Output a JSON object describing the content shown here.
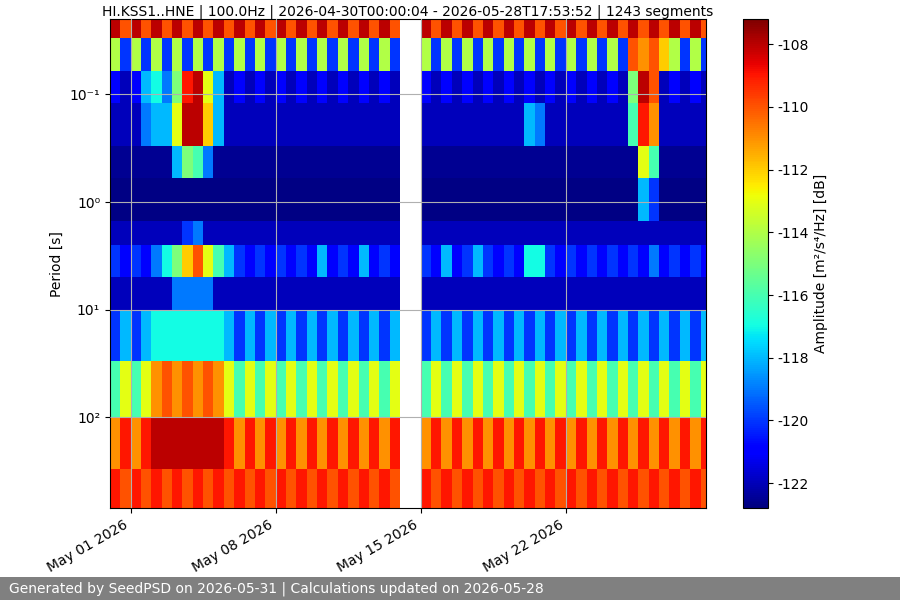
{
  "chart_data": {
    "type": "heatmap",
    "title": "HI.KSS1..HNE | 100.0Hz | 2026-04-30T00:00:04 - 2026-05-28T17:53:52 | 1243 segments",
    "ylabel": "Period [s]",
    "footer": "Generated by SeedPSD on 2026-05-31 | Calculations updated on 2026-05-28",
    "color": "jet",
    "log": "y",
    "grid": true,
    "xlim": [
      "2026-04-30T00:00:04",
      "2026-05-28T17:53:52"
    ],
    "xticks": [
      {
        "value": "2026-05-01",
        "label": "May 01 2026"
      },
      {
        "value": "2026-05-08",
        "label": "May 08 2026"
      },
      {
        "value": "2026-05-15",
        "label": "May 15 2026"
      },
      {
        "value": "2026-05-22",
        "label": "May 22 2026"
      }
    ],
    "ylim": [
      700,
      0.02
    ],
    "yticks": [
      {
        "value": 0.1,
        "label": "10⁻¹"
      },
      {
        "value": 1,
        "label": "10⁰"
      },
      {
        "value": 10,
        "label": "10¹"
      },
      {
        "value": 100,
        "label": "10²"
      }
    ],
    "colorbar": {
      "label": "Amplitude [m²/s⁴/Hz] [dB]",
      "range": [
        -122.8,
        -107.2
      ],
      "ticks": [
        -122,
        -120,
        -118,
        -116,
        -114,
        -112,
        -110,
        -108
      ]
    },
    "time_edges": [
      "2026-04-30T00:00",
      "2026-04-30T12:00",
      "2026-05-01T00:00",
      "2026-05-01T12:00",
      "2026-05-02T00:00",
      "2026-05-02T12:00",
      "2026-05-03T00:00",
      "2026-05-03T12:00",
      "2026-05-04T00:00",
      "2026-05-04T12:00",
      "2026-05-05T00:00",
      "2026-05-05T12:00",
      "2026-05-06T00:00",
      "2026-05-06T12:00",
      "2026-05-07T00:00",
      "2026-05-07T12:00",
      "2026-05-08T00:00",
      "2026-05-08T12:00",
      "2026-05-09T00:00",
      "2026-05-09T12:00",
      "2026-05-10T00:00",
      "2026-05-10T12:00",
      "2026-05-11T00:00",
      "2026-05-11T12:00",
      "2026-05-12T00:00",
      "2026-05-12T12:00",
      "2026-05-13T00:00",
      "2026-05-13T12:00",
      "2026-05-14T00:00",
      "2026-05-14T12:00",
      "2026-05-15T00:00",
      "2026-05-15T12:00",
      "2026-05-16T00:00",
      "2026-05-16T12:00",
      "2026-05-17T00:00",
      "2026-05-17T12:00",
      "2026-05-18T00:00",
      "2026-05-18T12:00",
      "2026-05-19T00:00",
      "2026-05-19T12:00",
      "2026-05-20T00:00",
      "2026-05-20T12:00",
      "2026-05-21T00:00",
      "2026-05-21T12:00",
      "2026-05-22T00:00",
      "2026-05-22T12:00",
      "2026-05-23T00:00",
      "2026-05-23T12:00",
      "2026-05-24T00:00",
      "2026-05-24T12:00",
      "2026-05-25T00:00",
      "2026-05-25T12:00",
      "2026-05-26T00:00",
      "2026-05-26T12:00",
      "2026-05-27T00:00",
      "2026-05-27T12:00",
      "2026-05-28T00:00",
      "2026-05-28T12:00",
      "2026-05-29T00:00"
    ],
    "period_edges": [
      0.02,
      0.03,
      0.06,
      0.12,
      0.3,
      0.6,
      1.5,
      2.5,
      5,
      10,
      30,
      100,
      300,
      700
    ],
    "cells": [
      [
        -108,
        -110,
        -108,
        -110,
        -108,
        -110,
        -108,
        -110,
        -108,
        -110,
        -108,
        -110,
        -108,
        -110,
        -108,
        -110,
        -108,
        -110,
        -108,
        -110,
        -108,
        -110,
        -108,
        -110,
        -108,
        -110,
        -108,
        -110,
        null,
        null,
        -108,
        -110,
        -108,
        -110,
        -108,
        -110,
        -108,
        -110,
        -108,
        -110,
        -108,
        -110,
        -108,
        -110,
        -108,
        -110,
        -108,
        -110,
        -108,
        -110,
        -108,
        -110,
        -108,
        -110,
        -108,
        -110,
        -108,
        -110
      ],
      [
        -114,
        -120,
        -114,
        -120,
        -114,
        -120,
        -114,
        -120,
        -114,
        -120,
        -114,
        -120,
        -114,
        -120,
        -114,
        -120,
        -114,
        -120,
        -114,
        -120,
        -114,
        -120,
        -114,
        -120,
        -114,
        -120,
        -114,
        -120,
        null,
        null,
        -114,
        -120,
        -114,
        -120,
        -114,
        -120,
        -114,
        -120,
        -114,
        -120,
        -114,
        -120,
        -114,
        -120,
        -114,
        -120,
        -114,
        -120,
        -114,
        -120,
        -110,
        -111,
        -110,
        -112,
        -114,
        -120,
        -114,
        -120
      ],
      [
        -121,
        -122,
        -121,
        -118,
        -117,
        -119,
        -115,
        -109,
        -108,
        -113,
        -118,
        -122,
        -121,
        -122,
        -121,
        -122,
        -121,
        -122,
        -121,
        -122,
        -121,
        -122,
        -121,
        -122,
        -121,
        -122,
        -121,
        -122,
        null,
        null,
        -121,
        -122,
        -121,
        -122,
        -121,
        -122,
        -121,
        -122,
        -121,
        -122,
        -121,
        -122,
        -121,
        -122,
        -121,
        -122,
        -121,
        -122,
        -121,
        -122,
        -115,
        -108,
        -110,
        -122,
        -121,
        -122,
        -121,
        -122
      ],
      [
        -122,
        -122,
        -122,
        -119,
        -118,
        -118,
        -113,
        -108,
        -108,
        -112,
        -118,
        -122,
        -122,
        -122,
        -122,
        -122,
        -122,
        -122,
        -122,
        -122,
        -122,
        -122,
        -122,
        -122,
        -122,
        -122,
        -122,
        -122,
        null,
        null,
        -122,
        -122,
        -122,
        -122,
        -122,
        -122,
        -122,
        -122,
        -122,
        -122,
        -118,
        -119,
        -122,
        -122,
        -122,
        -122,
        -122,
        -122,
        -122,
        -122,
        -116,
        -109,
        -111,
        -122,
        -122,
        -122,
        -122,
        -122
      ],
      [
        -122.5,
        -122.5,
        -122.5,
        -122.5,
        -122.5,
        -122.5,
        -118,
        -115,
        -116,
        -119,
        -122.5,
        -122.5,
        -122.5,
        -122.5,
        -122.5,
        -122.5,
        -122.5,
        -122.5,
        -122.5,
        -122.5,
        -122.5,
        -122.5,
        -122.5,
        -122.5,
        -122.5,
        -122.5,
        -122.5,
        -122.5,
        null,
        null,
        -122.5,
        -122.5,
        -122.5,
        -122.5,
        -122.5,
        -122.5,
        -122.5,
        -122.5,
        -122.5,
        -122.5,
        -122.5,
        -122.5,
        -122.5,
        -122.5,
        -122.5,
        -122.5,
        -122.5,
        -122.5,
        -122.5,
        -122.5,
        -122.5,
        -113,
        -116,
        -122.5,
        -122.5,
        -122.5,
        -122.5,
        -122.5
      ],
      [
        -122.7,
        -122.7,
        -122.7,
        -122.7,
        -122.7,
        -122.7,
        -122.7,
        -122.7,
        -122.7,
        -122.7,
        -122.7,
        -122.7,
        -122.7,
        -122.7,
        -122.7,
        -122.7,
        -122.7,
        -122.7,
        -122.7,
        -122.7,
        -122.7,
        -122.7,
        -122.7,
        -122.7,
        -122.7,
        -122.7,
        -122.7,
        -122.7,
        null,
        null,
        -122.7,
        -122.7,
        -122.7,
        -122.7,
        -122.7,
        -122.7,
        -122.7,
        -122.7,
        -122.7,
        -122.7,
        -122.7,
        -122.7,
        -122.7,
        -122.7,
        -122.7,
        -122.7,
        -122.7,
        -122.7,
        -122.7,
        -122.7,
        -122.7,
        -118,
        -120,
        -122.7,
        -122.7,
        -122.7,
        -122.7,
        -122.7
      ],
      [
        -122,
        -122,
        -122,
        -122,
        -122,
        -122,
        -122,
        -120,
        -119,
        -122,
        -122,
        -122,
        -122,
        -122,
        -122,
        -122,
        -122,
        -122,
        -122,
        -122,
        -122,
        -122,
        -122,
        -122,
        -122,
        -122,
        -122,
        -122,
        null,
        null,
        -122,
        -122,
        -122,
        -122,
        -122,
        -122,
        -122,
        -122,
        -122,
        -122,
        -122,
        -122,
        -122,
        -122,
        -122,
        -122,
        -122,
        -122,
        -122,
        -122,
        -122,
        -122,
        -122,
        -122,
        -122,
        -122,
        -122,
        -122
      ],
      [
        -120,
        -121,
        -120,
        -121,
        -119,
        -117,
        -115,
        -112,
        -110,
        -113,
        -116,
        -118,
        -120,
        -121,
        -120,
        -121,
        -120,
        -121,
        -120,
        -121,
        -118,
        -121,
        -120,
        -121,
        -118,
        -121,
        -120,
        -121,
        null,
        null,
        -120,
        -121,
        -118,
        -121,
        -120,
        -118,
        -120,
        -121,
        -120,
        -121,
        -117,
        -117,
        -120,
        -121,
        -120,
        -121,
        -120,
        -121,
        -120,
        -121,
        -120,
        -121,
        -119,
        -121,
        -120,
        -121,
        -120,
        -121
      ],
      [
        -122,
        -122,
        -122,
        -122,
        -122,
        -122,
        -119,
        -119,
        -119,
        -119,
        -122,
        -122,
        -122,
        -122,
        -122,
        -122,
        -122,
        -122,
        -122,
        -122,
        -122,
        -122,
        -122,
        -122,
        -122,
        -122,
        -122,
        -122,
        null,
        null,
        -122,
        -122,
        -122,
        -122,
        -122,
        -122,
        -122,
        -122,
        -122,
        -122,
        -122,
        -122,
        -122,
        -122,
        -122,
        -122,
        -122,
        -122,
        -122,
        -122,
        -122,
        -122,
        -122,
        -122,
        -122,
        -122,
        -122,
        -122
      ],
      [
        -120,
        -118,
        -120,
        -118,
        -117,
        -117,
        -117,
        -117,
        -117,
        -117,
        -117,
        -118,
        -120,
        -118,
        -120,
        -118,
        -120,
        -118,
        -120,
        -118,
        -120,
        -118,
        -120,
        -118,
        -120,
        -118,
        -120,
        -118,
        null,
        null,
        -120,
        -118,
        -120,
        -118,
        -120,
        -118,
        -120,
        -118,
        -120,
        -118,
        -120,
        -118,
        -120,
        -118,
        -120,
        -118,
        -120,
        -118,
        -120,
        -118,
        -120,
        -118,
        -120,
        -118,
        -120,
        -118,
        -120,
        -118
      ],
      [
        -116,
        -113,
        -116,
        -113,
        -111,
        -110,
        -111,
        -110,
        -111,
        -110,
        -111,
        -113,
        -116,
        -113,
        -116,
        -113,
        -116,
        -113,
        -116,
        -113,
        -116,
        -113,
        -116,
        -113,
        -116,
        -113,
        -116,
        -113,
        null,
        null,
        -116,
        -113,
        -116,
        -113,
        -116,
        -113,
        -116,
        -113,
        -116,
        -113,
        -116,
        -113,
        -116,
        -113,
        -116,
        -113,
        -116,
        -113,
        -116,
        -113,
        -116,
        -113,
        -116,
        -113,
        -116,
        -113,
        -116,
        -113
      ],
      [
        -111,
        -109,
        -111,
        -109,
        -108,
        -108,
        -108,
        -108,
        -108,
        -108,
        -108,
        -109,
        -111,
        -109,
        -111,
        -109,
        -111,
        -109,
        -111,
        -109,
        -111,
        -109,
        -111,
        -109,
        -111,
        -109,
        -111,
        -109,
        null,
        null,
        -111,
        -109,
        -111,
        -109,
        -111,
        -109,
        -111,
        -109,
        -111,
        -109,
        -111,
        -109,
        -111,
        -109,
        -111,
        -109,
        -111,
        -109,
        -111,
        -109,
        -111,
        -109,
        -111,
        -109,
        -111,
        -109,
        -111,
        -109
      ],
      [
        -109,
        -110,
        -109,
        -110,
        -109,
        -110,
        -109,
        -110,
        -109,
        -110,
        -109,
        -110,
        -109,
        -110,
        -109,
        -110,
        -109,
        -110,
        -109,
        -110,
        -109,
        -110,
        -109,
        -110,
        -109,
        -110,
        -109,
        -110,
        null,
        null,
        -109,
        -110,
        -109,
        -110,
        -109,
        -110,
        -109,
        -110,
        -109,
        -110,
        -109,
        -110,
        -109,
        -110,
        -109,
        -110,
        -109,
        -110,
        -109,
        -110,
        -109,
        -110,
        -109,
        -110,
        -109,
        -110,
        -109,
        -110
      ]
    ]
  }
}
